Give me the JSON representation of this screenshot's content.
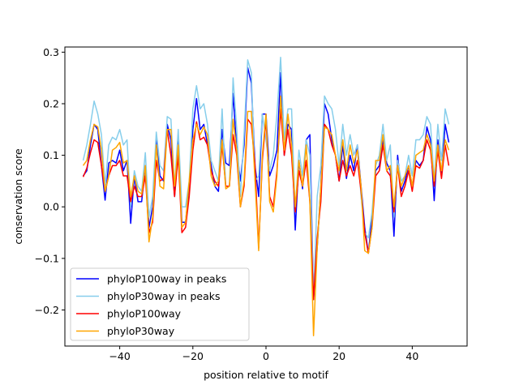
{
  "chart_data": {
    "type": "line",
    "title": "",
    "xlabel": "position relative to motif",
    "ylabel": "conservation score",
    "xlim": [
      -55,
      55
    ],
    "ylim": [
      -0.27,
      0.31
    ],
    "xticks": [
      -40,
      -20,
      0,
      20,
      40
    ],
    "yticks": [
      -0.2,
      -0.1,
      0.0,
      0.1,
      0.2,
      0.3
    ],
    "ytick_labels": [
      "−0.2",
      "−0.1",
      "0.0",
      "0.1",
      "0.2",
      "0.3"
    ],
    "xtick_labels": [
      "−40",
      "−20",
      "0",
      "20",
      "40"
    ],
    "legend_position": "lower-left",
    "grid": false,
    "x": [
      -50,
      -49,
      -48,
      -47,
      -46,
      -45,
      -44,
      -43,
      -42,
      -41,
      -40,
      -39,
      -38,
      -37,
      -36,
      -35,
      -34,
      -33,
      -32,
      -31,
      -30,
      -29,
      -28,
      -27,
      -26,
      -25,
      -24,
      -23,
      -22,
      -21,
      -20,
      -19,
      -18,
      -17,
      -16,
      -15,
      -14,
      -13,
      -12,
      -11,
      -10,
      -9,
      -8,
      -7,
      -6,
      -5,
      -4,
      -3,
      -2,
      -1,
      0,
      1,
      2,
      3,
      4,
      5,
      6,
      7,
      8,
      9,
      10,
      11,
      12,
      13,
      14,
      15,
      16,
      17,
      18,
      19,
      20,
      21,
      22,
      23,
      24,
      25,
      26,
      27,
      28,
      29,
      30,
      31,
      32,
      33,
      34,
      35,
      36,
      37,
      38,
      39,
      40,
      41,
      42,
      43,
      44,
      45,
      46,
      47,
      48,
      49,
      50
    ],
    "series": [
      {
        "name": "phyloP100way in peaks",
        "color": "#0000ff",
        "values": [
          0.06,
          0.07,
          0.12,
          0.16,
          0.15,
          0.08,
          0.013,
          0.085,
          0.09,
          0.085,
          0.11,
          0.07,
          0.09,
          -0.032,
          0.06,
          0.01,
          0.01,
          0.08,
          -0.04,
          0.0,
          0.13,
          0.06,
          0.05,
          0.16,
          0.13,
          0.02,
          0.13,
          -0.03,
          -0.03,
          0.04,
          0.15,
          0.21,
          0.15,
          0.16,
          0.12,
          0.08,
          0.04,
          0.03,
          0.15,
          0.085,
          0.08,
          0.22,
          0.11,
          0.05,
          0.12,
          0.27,
          0.24,
          0.08,
          0.02,
          0.18,
          0.18,
          0.06,
          0.08,
          0.11,
          0.26,
          0.1,
          0.16,
          0.15,
          -0.045,
          0.09,
          0.035,
          0.13,
          0.14,
          -0.18,
          -0.08,
          0.04,
          0.2,
          0.18,
          0.13,
          0.1,
          0.05,
          0.12,
          0.055,
          0.1,
          0.07,
          0.12,
          0.04,
          -0.04,
          -0.09,
          -0.02,
          0.07,
          0.08,
          0.13,
          0.085,
          0.07,
          -0.057,
          0.1,
          0.03,
          0.05,
          0.08,
          0.04,
          0.09,
          0.08,
          0.09,
          0.155,
          0.13,
          0.012,
          0.13,
          0.06,
          0.16,
          0.125
        ]
      },
      {
        "name": "phyloP30way in peaks",
        "color": "#87ceeb",
        "values": [
          0.09,
          0.12,
          0.16,
          0.205,
          0.18,
          0.14,
          0.04,
          0.12,
          0.135,
          0.13,
          0.15,
          0.12,
          0.13,
          0.0,
          0.07,
          0.04,
          0.03,
          0.105,
          -0.02,
          0.02,
          0.145,
          0.08,
          0.07,
          0.175,
          0.17,
          0.04,
          0.15,
          0.0,
          0.0,
          0.05,
          0.19,
          0.235,
          0.19,
          0.2,
          0.16,
          0.09,
          0.07,
          0.05,
          0.19,
          0.04,
          0.04,
          0.25,
          0.15,
          0.02,
          0.14,
          0.285,
          0.26,
          0.05,
          0.06,
          0.18,
          0.13,
          0.07,
          0.1,
          0.18,
          0.29,
          0.13,
          0.19,
          0.19,
          -0.01,
          0.11,
          0.06,
          0.13,
          0.1,
          -0.18,
          0.02,
          0.08,
          0.215,
          0.2,
          0.19,
          0.15,
          0.08,
          0.16,
          0.1,
          0.14,
          0.1,
          0.12,
          0.02,
          -0.05,
          -0.06,
          -0.01,
          0.08,
          0.1,
          0.16,
          0.09,
          0.12,
          -0.02,
          0.09,
          0.05,
          0.06,
          0.1,
          0.06,
          0.13,
          0.13,
          0.14,
          0.175,
          0.16,
          0.05,
          0.16,
          0.09,
          0.19,
          0.16
        ]
      },
      {
        "name": "phyloP100way",
        "color": "#ff0000",
        "values": [
          0.058,
          0.075,
          0.105,
          0.13,
          0.125,
          0.08,
          0.03,
          0.06,
          0.08,
          0.08,
          0.09,
          0.06,
          0.06,
          0.01,
          0.04,
          0.02,
          0.02,
          0.06,
          -0.05,
          -0.03,
          0.09,
          0.05,
          0.055,
          0.15,
          0.1,
          0.02,
          0.1,
          -0.05,
          -0.04,
          0.02,
          0.11,
          0.165,
          0.13,
          0.135,
          0.12,
          0.07,
          0.05,
          0.04,
          0.12,
          0.04,
          0.04,
          0.14,
          0.1,
          0.0,
          0.04,
          0.17,
          0.16,
          0.08,
          -0.08,
          0.09,
          0.17,
          0.02,
          0.0,
          0.07,
          0.19,
          0.1,
          0.15,
          0.1,
          -0.01,
          0.07,
          0.04,
          0.09,
          0.01,
          -0.18,
          -0.06,
          0.01,
          0.16,
          0.15,
          0.12,
          0.1,
          0.05,
          0.09,
          0.06,
          0.08,
          0.06,
          0.09,
          0.03,
          -0.05,
          -0.09,
          -0.04,
          0.06,
          0.07,
          0.12,
          0.07,
          0.06,
          -0.01,
          0.08,
          0.02,
          0.04,
          0.07,
          0.03,
          0.08,
          0.075,
          0.09,
          0.13,
          0.11,
          0.04,
          0.11,
          0.055,
          0.12,
          0.08
        ]
      },
      {
        "name": "phyloP30way",
        "color": "#ffa500",
        "values": [
          0.08,
          0.09,
          0.13,
          0.16,
          0.155,
          0.11,
          0.03,
          0.06,
          0.11,
          0.115,
          0.125,
          0.085,
          0.09,
          0.02,
          0.06,
          0.03,
          0.025,
          0.08,
          -0.068,
          -0.02,
          0.12,
          0.04,
          0.035,
          0.15,
          0.15,
          0.04,
          0.12,
          -0.04,
          -0.03,
          0.05,
          0.13,
          0.16,
          0.14,
          0.155,
          0.14,
          0.06,
          0.04,
          0.05,
          0.13,
          0.035,
          0.04,
          0.17,
          0.11,
          0.0,
          0.05,
          0.185,
          0.185,
          0.05,
          -0.085,
          0.1,
          0.18,
          0.01,
          -0.01,
          0.06,
          0.215,
          0.11,
          0.18,
          0.12,
          0.0,
          0.09,
          0.04,
          0.12,
          0.01,
          -0.25,
          -0.08,
          0.04,
          0.155,
          0.15,
          0.14,
          0.1,
          0.07,
          0.13,
          0.07,
          0.12,
          0.085,
          0.11,
          0.04,
          -0.085,
          -0.09,
          -0.04,
          0.09,
          0.09,
          0.14,
          0.07,
          0.08,
          0.0,
          0.08,
          0.04,
          0.06,
          0.08,
          0.04,
          0.1,
          0.105,
          0.11,
          0.14,
          0.12,
          0.05,
          0.12,
          0.07,
          0.13,
          0.11
        ]
      }
    ]
  }
}
